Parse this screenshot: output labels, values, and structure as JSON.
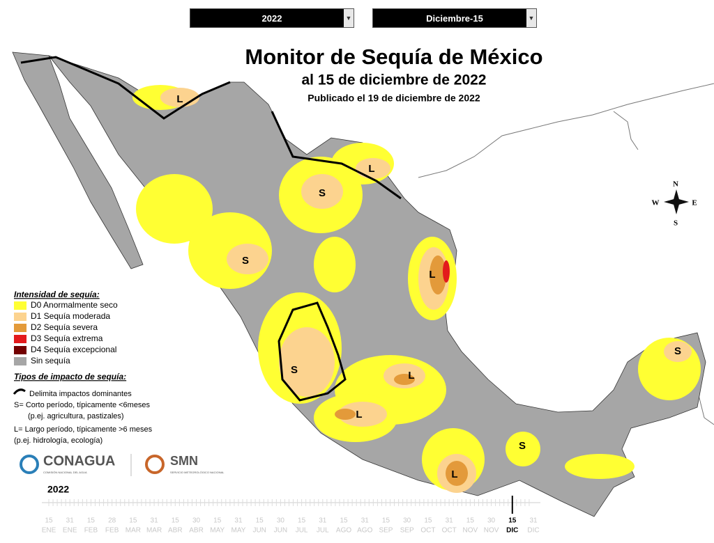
{
  "controls": {
    "year": "2022",
    "date": "Diciembre-15"
  },
  "header": {
    "title": "Monitor de Sequía de México",
    "subtitle": "al 15 de diciembre de 2022",
    "published": "Publicado el 19 de diciembre de 2022"
  },
  "legend": {
    "title": "Intensidad de sequía:",
    "items": [
      {
        "label": "D0 Anormalmente seco",
        "color": "#ffff33"
      },
      {
        "label": "D1 Sequía moderada",
        "color": "#fcd38f"
      },
      {
        "label": "D2 Sequía severa",
        "color": "#e39a3a"
      },
      {
        "label": "D3 Sequía extrema",
        "color": "#e31a1c"
      },
      {
        "label": "D4 Sequía excepcional",
        "color": "#730000"
      },
      {
        "label": "Sin sequía",
        "color": "#a6a6a6"
      }
    ]
  },
  "impact": {
    "title": "Tipos de impacto de sequía:",
    "boundary": "Delimita impactos dominantes",
    "short": "S= Corto período, típicamente <6meses",
    "short_example": "(p.ej. agricultura, pastizales)",
    "long": "L= Largo período, típicamente >6 meses",
    "long_example": "(p.ej. hidrología, ecología)"
  },
  "logos": {
    "conagua": "CONAGUA",
    "conagua_sub": "COMISIÓN NACIONAL DEL AGUA",
    "smn": "SMN",
    "smn_sub": "SERVICIO METEOROLÓGICO NACIONAL"
  },
  "compass": [
    "N",
    "E",
    "S",
    "W"
  ],
  "map_labels": [
    "L",
    "L",
    "S",
    "S",
    "L",
    "S",
    "L",
    "L",
    "S",
    "L",
    "S"
  ],
  "timeline": {
    "year": "2022",
    "ticks": [
      {
        "day": "15",
        "month": "ENE"
      },
      {
        "day": "31",
        "month": "ENE"
      },
      {
        "day": "15",
        "month": "FEB"
      },
      {
        "day": "28",
        "month": "FEB"
      },
      {
        "day": "15",
        "month": "MAR"
      },
      {
        "day": "31",
        "month": "MAR"
      },
      {
        "day": "15",
        "month": "ABR"
      },
      {
        "day": "30",
        "month": "ABR"
      },
      {
        "day": "15",
        "month": "MAY"
      },
      {
        "day": "31",
        "month": "MAY"
      },
      {
        "day": "15",
        "month": "JUN"
      },
      {
        "day": "30",
        "month": "JUN"
      },
      {
        "day": "15",
        "month": "JUL"
      },
      {
        "day": "31",
        "month": "JUL"
      },
      {
        "day": "15",
        "month": "AGO"
      },
      {
        "day": "31",
        "month": "AGO"
      },
      {
        "day": "15",
        "month": "SEP"
      },
      {
        "day": "30",
        "month": "SEP"
      },
      {
        "day": "15",
        "month": "OCT"
      },
      {
        "day": "31",
        "month": "OCT"
      },
      {
        "day": "15",
        "month": "NOV"
      },
      {
        "day": "30",
        "month": "NOV"
      },
      {
        "day": "15",
        "month": "DIC",
        "active": true
      },
      {
        "day": "31",
        "month": "DIC"
      }
    ]
  }
}
